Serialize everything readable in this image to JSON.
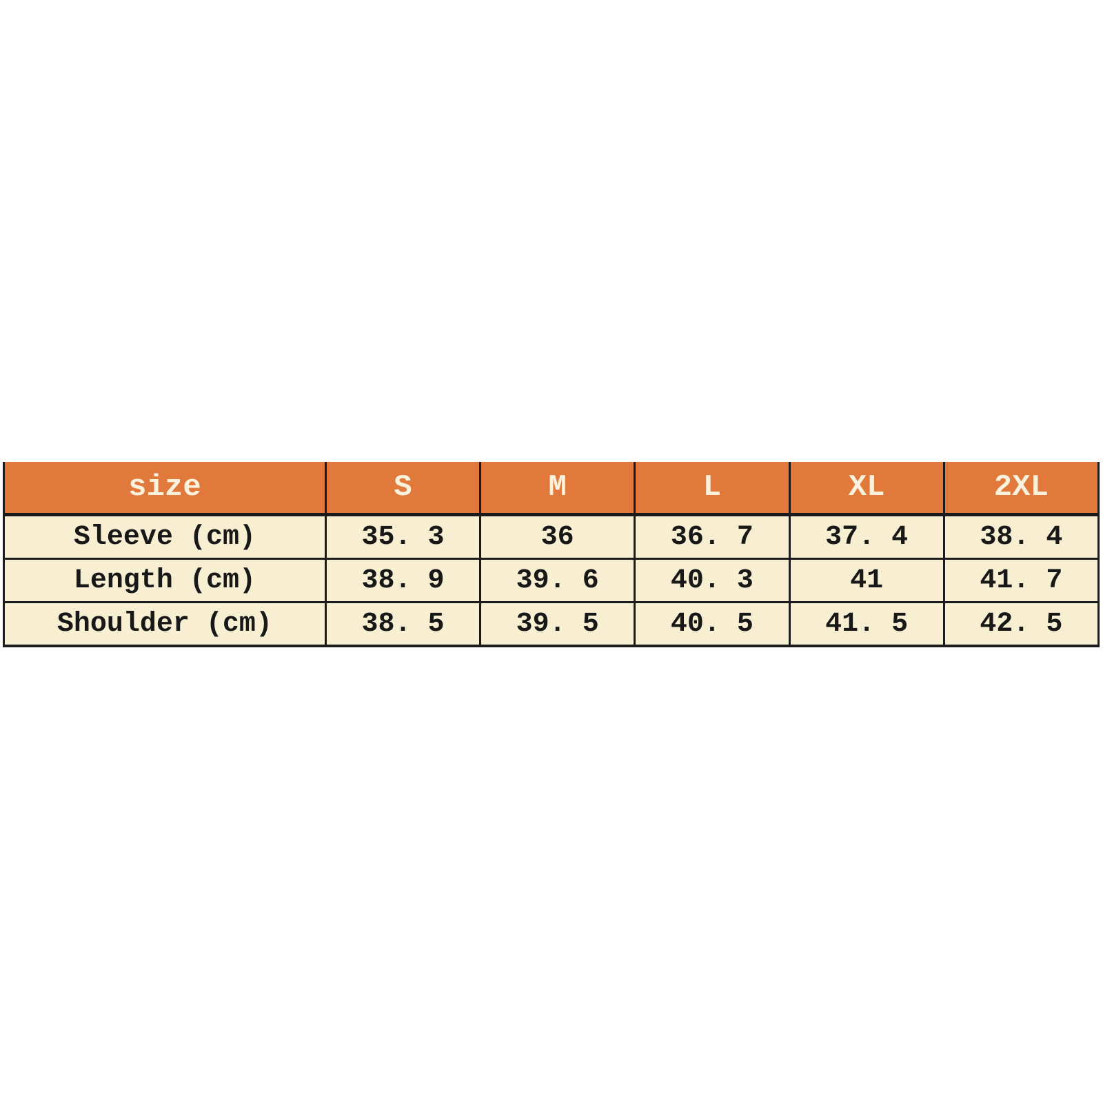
{
  "page": {
    "background_color": "#ffffff"
  },
  "size_chart": {
    "corner_label": "size",
    "size_columns": [
      "S",
      "M",
      "L",
      "XL",
      "2XL"
    ],
    "rows": [
      {
        "label": "Sleeve (cm)",
        "values": [
          "35. 3",
          "36",
          "36. 7",
          "37. 4",
          "38. 4"
        ]
      },
      {
        "label": "Length (cm)",
        "values": [
          "38. 9",
          "39. 6",
          "40. 3",
          "41",
          "41. 7"
        ]
      },
      {
        "label": "Shoulder (cm)",
        "values": [
          "38. 5",
          "39. 5",
          "40. 5",
          "41. 5",
          "42. 5"
        ]
      }
    ],
    "colors": {
      "header_background": "#e2793c",
      "header_text": "#fbf2de",
      "body_background": "#f8efd2",
      "body_text": "#181818",
      "border": "#1b1b1b"
    }
  },
  "chart_data": {
    "type": "table",
    "title": "size",
    "categories": [
      "S",
      "M",
      "L",
      "XL",
      "2XL"
    ],
    "series": [
      {
        "name": "Sleeve (cm)",
        "values": [
          35.3,
          36,
          36.7,
          37.4,
          38.4
        ]
      },
      {
        "name": "Length (cm)",
        "values": [
          38.9,
          39.6,
          40.3,
          41,
          41.7
        ]
      },
      {
        "name": "Shoulder (cm)",
        "values": [
          38.5,
          39.5,
          40.5,
          41.5,
          42.5
        ]
      }
    ]
  }
}
